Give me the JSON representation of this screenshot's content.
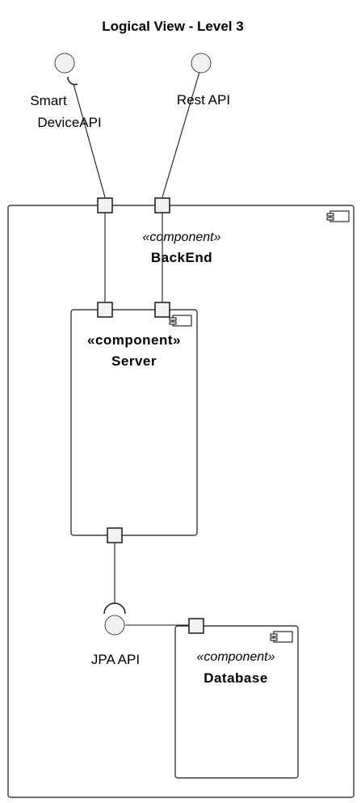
{
  "diagram": {
    "title": "Logical View - Level 3",
    "interfaces": {
      "smart_device_api": {
        "line1": "Smart",
        "line2": "DeviceAPI"
      },
      "rest_api": {
        "label": "Rest API"
      },
      "jpa_api": {
        "label": "JPA API"
      }
    },
    "components": {
      "backend": {
        "stereotype": "«component»",
        "name": "BackEnd"
      },
      "server": {
        "stereotype": "«component»",
        "name": "Server"
      },
      "database": {
        "stereotype": "«component»",
        "name": "Database"
      }
    },
    "icons": {
      "component_icon": "uml-component-icon"
    }
  }
}
